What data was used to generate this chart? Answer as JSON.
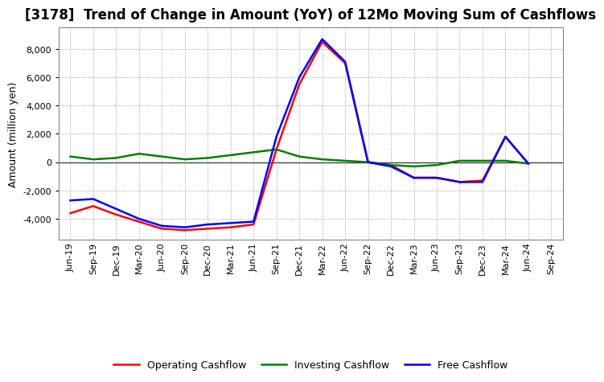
{
  "title": "[3178]  Trend of Change in Amount (YoY) of 12Mo Moving Sum of Cashflows",
  "ylabel": "Amount (million yen)",
  "x_labels": [
    "Jun-19",
    "Sep-19",
    "Dec-19",
    "Mar-20",
    "Jun-20",
    "Sep-20",
    "Dec-20",
    "Mar-21",
    "Jun-21",
    "Sep-21",
    "Dec-21",
    "Mar-22",
    "Jun-22",
    "Sep-22",
    "Dec-22",
    "Mar-23",
    "Jun-23",
    "Sep-23",
    "Dec-23",
    "Mar-24",
    "Jun-24",
    "Sep-24"
  ],
  "operating_cashflow": [
    -3600,
    -3100,
    -3700,
    -4200,
    -4700,
    -4800,
    -4700,
    -4600,
    -4400,
    900,
    5500,
    8500,
    7000,
    0,
    -200,
    -1100,
    -1100,
    -1400,
    -1300,
    1800,
    -100,
    null
  ],
  "investing_cashflow": [
    400,
    200,
    300,
    600,
    400,
    200,
    300,
    500,
    700,
    900,
    400,
    200,
    100,
    0,
    -200,
    -300,
    -200,
    100,
    100,
    100,
    -100,
    null
  ],
  "free_cashflow": [
    -2700,
    -2600,
    -3300,
    -4000,
    -4500,
    -4600,
    -4400,
    -4300,
    -4200,
    1800,
    6000,
    8700,
    7100,
    0,
    -300,
    -1100,
    -1100,
    -1400,
    -1400,
    1800,
    -100,
    null
  ],
  "ylim": [
    -5500,
    9500
  ],
  "yticks": [
    -4000,
    -2000,
    0,
    2000,
    4000,
    6000,
    8000
  ],
  "operating_color": "#FF0000",
  "investing_color": "#008000",
  "free_color": "#0000FF",
  "background_color": "#FFFFFF",
  "grid_color": "#999999",
  "line_width": 1.8,
  "title_fontsize": 12,
  "legend_fontsize": 9,
  "axis_fontsize": 8,
  "ylabel_fontsize": 9
}
